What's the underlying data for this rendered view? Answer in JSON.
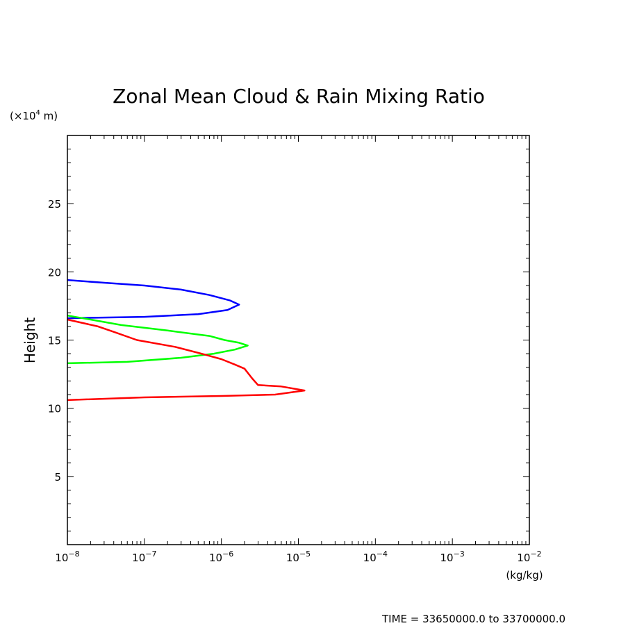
{
  "chart_data": {
    "type": "line",
    "title": "Zonal Mean Cloud & Rain Mixing Ratio",
    "ylabel": "Height",
    "y_scale_label": "(×10",
    "y_scale_exp": "4",
    "y_scale_unit": " m)",
    "xunit": "(kg/kg)",
    "x_scale": "log",
    "xlim": [
      1e-08,
      0.01
    ],
    "ylim": [
      0,
      30
    ],
    "x_ticks": [
      {
        "value": 1e-08,
        "base": "10",
        "exp": "−8"
      },
      {
        "value": 1e-07,
        "base": "10",
        "exp": "−7"
      },
      {
        "value": 1e-06,
        "base": "10",
        "exp": "−6"
      },
      {
        "value": 1e-05,
        "base": "10",
        "exp": "−5"
      },
      {
        "value": 0.0001,
        "base": "10",
        "exp": "−4"
      },
      {
        "value": 0.001,
        "base": "10",
        "exp": "−3"
      },
      {
        "value": 0.01,
        "base": "10",
        "exp": "−2"
      }
    ],
    "y_ticks": [
      {
        "value": 5,
        "label": "5"
      },
      {
        "value": 10,
        "label": "10"
      },
      {
        "value": 15,
        "label": "15"
      },
      {
        "value": 20,
        "label": "20"
      },
      {
        "value": 25,
        "label": "25"
      }
    ],
    "grid": false,
    "series": [
      {
        "color": "#0000ff",
        "x": [
          1e-08,
          3e-08,
          1e-07,
          3e-07,
          7e-07,
          1.3e-06,
          1.7e-06,
          1.2e-06,
          5e-07,
          1e-07,
          1e-08
        ],
        "y": [
          19.4,
          19.2,
          19.0,
          18.7,
          18.3,
          17.9,
          17.6,
          17.2,
          16.9,
          16.7,
          16.6
        ]
      },
      {
        "color": "#00ff00",
        "x": [
          1e-08,
          2e-08,
          5e-08,
          2e-07,
          7e-07,
          1.1e-06,
          1.7e-06,
          2.2e-06,
          1.5e-06,
          8e-07,
          3e-07,
          6e-08,
          1e-08
        ],
        "y": [
          16.8,
          16.5,
          16.1,
          15.7,
          15.3,
          15.0,
          14.8,
          14.6,
          14.3,
          14.0,
          13.7,
          13.4,
          13.3
        ]
      },
      {
        "color": "#ff0000",
        "x": [
          1e-08,
          2.5e-08,
          4e-08,
          8e-08,
          2.5e-07,
          5.5e-07,
          1e-06,
          1.5e-06,
          2e-06,
          2.5e-06,
          3e-06,
          6e-06,
          1.2e-05,
          5e-06,
          1e-06,
          1e-07,
          1e-08
        ],
        "y": [
          16.5,
          16.0,
          15.6,
          15.0,
          14.5,
          14.0,
          13.6,
          13.2,
          12.9,
          12.2,
          11.7,
          11.6,
          11.3,
          11.0,
          10.9,
          10.8,
          10.6
        ]
      }
    ],
    "footer": "TIME = 33650000.0 to 33700000.0"
  }
}
